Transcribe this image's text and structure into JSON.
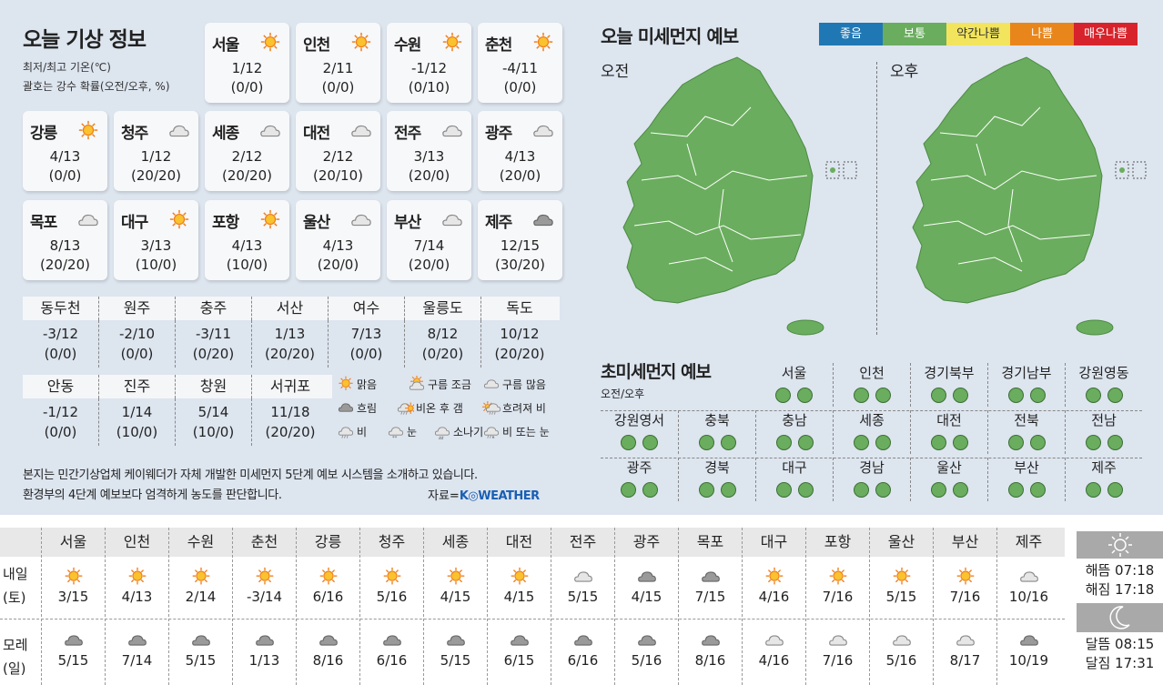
{
  "today": {
    "title": "오늘 기상 정보",
    "subtitle1": "최저/최고 기온(℃)",
    "subtitle2": "괄호는 강수 확률(오전/오후, %)",
    "cards": [
      {
        "city": "서울",
        "icon": "sun",
        "temp": "1/12",
        "rain": "(0/0)"
      },
      {
        "city": "인천",
        "icon": "sun",
        "temp": "2/11",
        "rain": "(0/0)"
      },
      {
        "city": "수원",
        "icon": "sun",
        "temp": "-1/12",
        "rain": "(0/10)"
      },
      {
        "city": "춘천",
        "icon": "sun",
        "temp": "-4/11",
        "rain": "(0/0)"
      },
      {
        "city": "강릉",
        "icon": "sun",
        "temp": "4/13",
        "rain": "(0/0)"
      },
      {
        "city": "청주",
        "icon": "cloud-light",
        "temp": "1/12",
        "rain": "(20/20)"
      },
      {
        "city": "세종",
        "icon": "cloud-light",
        "temp": "2/12",
        "rain": "(20/20)"
      },
      {
        "city": "대전",
        "icon": "cloud-light",
        "temp": "2/12",
        "rain": "(20/10)"
      },
      {
        "city": "전주",
        "icon": "cloud-light",
        "temp": "3/13",
        "rain": "(20/0)"
      },
      {
        "city": "광주",
        "icon": "cloud-light",
        "temp": "4/13",
        "rain": "(20/0)"
      },
      {
        "city": "목포",
        "icon": "cloud-light",
        "temp": "8/13",
        "rain": "(20/20)"
      },
      {
        "city": "대구",
        "icon": "sun",
        "temp": "3/13",
        "rain": "(10/0)"
      },
      {
        "city": "포항",
        "icon": "sun",
        "temp": "4/13",
        "rain": "(10/0)"
      },
      {
        "city": "울산",
        "icon": "cloud-light",
        "temp": "4/13",
        "rain": "(20/0)"
      },
      {
        "city": "부산",
        "icon": "cloud-light",
        "temp": "7/14",
        "rain": "(20/0)"
      },
      {
        "city": "제주",
        "icon": "cloud-dark",
        "temp": "12/15",
        "rain": "(30/20)"
      }
    ],
    "small_cities": [
      {
        "city": "동두천",
        "temp": "-3/12",
        "rain": "(0/0)"
      },
      {
        "city": "원주",
        "temp": "-2/10",
        "rain": "(0/0)"
      },
      {
        "city": "충주",
        "temp": "-3/11",
        "rain": "(0/20)"
      },
      {
        "city": "서산",
        "temp": "1/13",
        "rain": "(20/20)"
      },
      {
        "city": "여수",
        "temp": "7/13",
        "rain": "(0/0)"
      },
      {
        "city": "울릉도",
        "temp": "8/12",
        "rain": "(0/20)"
      },
      {
        "city": "독도",
        "temp": "10/12",
        "rain": "(20/20)"
      },
      {
        "city": "안동",
        "temp": "-1/12",
        "rain": "(0/0)"
      },
      {
        "city": "진주",
        "temp": "1/14",
        "rain": "(10/0)"
      },
      {
        "city": "창원",
        "temp": "5/14",
        "rain": "(10/0)"
      },
      {
        "city": "서귀포",
        "temp": "11/18",
        "rain": "(20/20)"
      }
    ],
    "legend": [
      {
        "icon": "sun",
        "label": "맑음"
      },
      {
        "icon": "sun-cloud",
        "label": "구름 조금"
      },
      {
        "icon": "cloud-light",
        "label": "구름 많음"
      },
      {
        "icon": "cloud-dark",
        "label": "흐림"
      },
      {
        "icon": "rain-sun",
        "label": "비온 후 갬"
      },
      {
        "icon": "sun-rain",
        "label": "흐려져 비"
      },
      {
        "icon": "rain",
        "label": "비"
      },
      {
        "icon": "snow",
        "label": "눈"
      },
      {
        "icon": "shower",
        "label": "소나기"
      },
      {
        "icon": "rain-snow",
        "label": "비 또는 눈"
      }
    ],
    "note1": "본지는 민간기상업체 케이웨더가 자체 개발한 미세먼지 5단계 예보 시스템을 소개하고 있습니다.",
    "note2": "환경부의 4단계 예보보다 엄격하게 농도를 판단합니다.",
    "source_label": "자료=",
    "source_logo": "K◎WEATHER"
  },
  "dust": {
    "title": "오늘 미세먼지 예보",
    "scale": [
      {
        "label": "좋음",
        "color": "#1f78b4"
      },
      {
        "label": "보통",
        "color": "#6aad5e"
      },
      {
        "label": "약간나쁨",
        "color": "#f2e45c"
      },
      {
        "label": "나쁨",
        "color": "#e8861c"
      },
      {
        "label": "매우나쁨",
        "color": "#d7242c"
      }
    ],
    "am_label": "오전",
    "pm_label": "오후",
    "map_am_level": "보통",
    "map_pm_level": "보통"
  },
  "fine_dust": {
    "title": "초미세먼지 예보",
    "subtitle": "오전/오후",
    "regions": [
      {
        "name": "서울",
        "am": "보통",
        "pm": "보통"
      },
      {
        "name": "인천",
        "am": "보통",
        "pm": "보통"
      },
      {
        "name": "경기북부",
        "am": "보통",
        "pm": "보통"
      },
      {
        "name": "경기남부",
        "am": "보통",
        "pm": "보통"
      },
      {
        "name": "강원영동",
        "am": "보통",
        "pm": "보통"
      },
      {
        "name": "강원영서",
        "am": "보통",
        "pm": "보통"
      },
      {
        "name": "충북",
        "am": "보통",
        "pm": "보통"
      },
      {
        "name": "충남",
        "am": "보통",
        "pm": "보통"
      },
      {
        "name": "세종",
        "am": "보통",
        "pm": "보통"
      },
      {
        "name": "대전",
        "am": "보통",
        "pm": "보통"
      },
      {
        "name": "전북",
        "am": "보통",
        "pm": "보통"
      },
      {
        "name": "전남",
        "am": "보통",
        "pm": "보통"
      },
      {
        "name": "광주",
        "am": "보통",
        "pm": "보통"
      },
      {
        "name": "경북",
        "am": "보통",
        "pm": "보통"
      },
      {
        "name": "대구",
        "am": "보통",
        "pm": "보통"
      },
      {
        "name": "경남",
        "am": "보통",
        "pm": "보통"
      },
      {
        "name": "울산",
        "am": "보통",
        "pm": "보통"
      },
      {
        "name": "부산",
        "am": "보통",
        "pm": "보통"
      },
      {
        "name": "제주",
        "am": "보통",
        "pm": "보통"
      }
    ]
  },
  "forecast": {
    "row1_label": [
      "내일",
      "(토)"
    ],
    "row2_label": [
      "모레",
      "(일)"
    ],
    "cities": [
      {
        "city": "서울",
        "d1_icon": "sun",
        "d1": "3/15",
        "d2_icon": "cloud-dark",
        "d2": "5/15"
      },
      {
        "city": "인천",
        "d1_icon": "sun",
        "d1": "4/13",
        "d2_icon": "cloud-dark",
        "d2": "7/14"
      },
      {
        "city": "수원",
        "d1_icon": "sun",
        "d1": "2/14",
        "d2_icon": "cloud-dark",
        "d2": "5/15"
      },
      {
        "city": "춘천",
        "d1_icon": "sun",
        "d1": "-3/14",
        "d2_icon": "cloud-dark",
        "d2": "1/13"
      },
      {
        "city": "강릉",
        "d1_icon": "sun",
        "d1": "6/16",
        "d2_icon": "cloud-dark",
        "d2": "8/16"
      },
      {
        "city": "청주",
        "d1_icon": "sun",
        "d1": "5/16",
        "d2_icon": "cloud-dark",
        "d2": "6/16"
      },
      {
        "city": "세종",
        "d1_icon": "sun",
        "d1": "4/15",
        "d2_icon": "cloud-dark",
        "d2": "5/15"
      },
      {
        "city": "대전",
        "d1_icon": "sun",
        "d1": "4/15",
        "d2_icon": "cloud-dark",
        "d2": "6/15"
      },
      {
        "city": "전주",
        "d1_icon": "cloud-light",
        "d1": "5/15",
        "d2_icon": "cloud-dark",
        "d2": "6/16"
      },
      {
        "city": "광주",
        "d1_icon": "cloud-dark",
        "d1": "4/15",
        "d2_icon": "cloud-dark",
        "d2": "5/16"
      },
      {
        "city": "목포",
        "d1_icon": "cloud-dark",
        "d1": "7/15",
        "d2_icon": "cloud-dark",
        "d2": "8/16"
      },
      {
        "city": "대구",
        "d1_icon": "sun",
        "d1": "4/16",
        "d2_icon": "cloud-light",
        "d2": "4/16"
      },
      {
        "city": "포항",
        "d1_icon": "sun",
        "d1": "7/16",
        "d2_icon": "cloud-light",
        "d2": "7/16"
      },
      {
        "city": "울산",
        "d1_icon": "sun",
        "d1": "5/15",
        "d2_icon": "cloud-light",
        "d2": "5/16"
      },
      {
        "city": "부산",
        "d1_icon": "sun",
        "d1": "7/16",
        "d2_icon": "cloud-light",
        "d2": "8/17"
      },
      {
        "city": "제주",
        "d1_icon": "cloud-light",
        "d1": "10/16",
        "d2_icon": "cloud-dark",
        "d2": "10/19"
      }
    ]
  },
  "sun_moon": {
    "sunrise": "해뜸 07:18",
    "sunset": "해짐 17:18",
    "moonrise": "달뜸 08:15",
    "moonset": "달짐 17:31"
  }
}
